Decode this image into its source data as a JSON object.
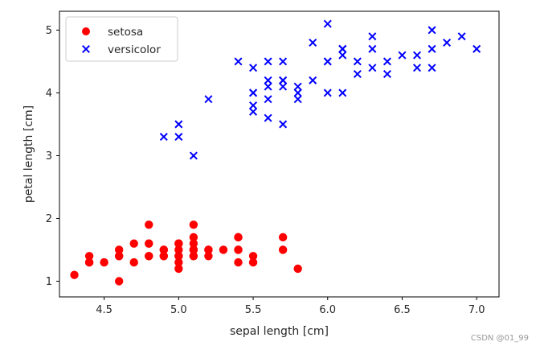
{
  "chart_data": {
    "type": "scatter",
    "xlabel": "sepal length [cm]",
    "ylabel": "petal length [cm]",
    "xlim": [
      4.2,
      7.15
    ],
    "ylim": [
      0.75,
      5.3
    ],
    "xticks": [
      "4.5",
      "5.0",
      "5.5",
      "6.0",
      "6.5",
      "7.0"
    ],
    "yticks": [
      "1",
      "2",
      "3",
      "4",
      "5"
    ],
    "legend_position": "top-left",
    "series": [
      {
        "name": "setosa",
        "marker": "circle",
        "color": "#ff0000",
        "points": [
          [
            5.1,
            1.4
          ],
          [
            4.9,
            1.4
          ],
          [
            4.7,
            1.3
          ],
          [
            4.6,
            1.5
          ],
          [
            5.0,
            1.4
          ],
          [
            5.4,
            1.7
          ],
          [
            4.6,
            1.4
          ],
          [
            5.0,
            1.5
          ],
          [
            4.4,
            1.4
          ],
          [
            4.9,
            1.5
          ],
          [
            5.4,
            1.5
          ],
          [
            4.8,
            1.6
          ],
          [
            4.8,
            1.4
          ],
          [
            4.3,
            1.1
          ],
          [
            5.8,
            1.2
          ],
          [
            5.7,
            1.5
          ],
          [
            5.4,
            1.3
          ],
          [
            5.1,
            1.4
          ],
          [
            5.7,
            1.7
          ],
          [
            5.1,
            1.5
          ],
          [
            5.4,
            1.7
          ],
          [
            5.1,
            1.5
          ],
          [
            4.6,
            1.0
          ],
          [
            5.1,
            1.7
          ],
          [
            4.8,
            1.9
          ],
          [
            5.0,
            1.6
          ],
          [
            5.0,
            1.6
          ],
          [
            5.2,
            1.5
          ],
          [
            5.2,
            1.4
          ],
          [
            4.7,
            1.6
          ],
          [
            4.8,
            1.6
          ],
          [
            5.4,
            1.5
          ],
          [
            5.2,
            1.5
          ],
          [
            5.5,
            1.4
          ],
          [
            4.9,
            1.5
          ],
          [
            5.0,
            1.2
          ],
          [
            5.5,
            1.3
          ],
          [
            4.9,
            1.4
          ],
          [
            4.4,
            1.3
          ],
          [
            5.1,
            1.5
          ],
          [
            5.0,
            1.3
          ],
          [
            4.5,
            1.3
          ],
          [
            4.4,
            1.3
          ],
          [
            5.0,
            1.6
          ],
          [
            5.1,
            1.9
          ],
          [
            4.8,
            1.4
          ],
          [
            5.1,
            1.6
          ],
          [
            4.6,
            1.4
          ],
          [
            5.3,
            1.5
          ],
          [
            5.0,
            1.4
          ]
        ]
      },
      {
        "name": "versicolor",
        "marker": "x",
        "color": "#0000ff",
        "points": [
          [
            7.0,
            4.7
          ],
          [
            6.4,
            4.5
          ],
          [
            6.9,
            4.9
          ],
          [
            5.5,
            4.0
          ],
          [
            6.5,
            4.6
          ],
          [
            5.7,
            4.5
          ],
          [
            6.3,
            4.7
          ],
          [
            4.9,
            3.3
          ],
          [
            6.6,
            4.6
          ],
          [
            5.2,
            3.9
          ],
          [
            5.0,
            3.5
          ],
          [
            5.9,
            4.2
          ],
          [
            6.0,
            4.0
          ],
          [
            6.1,
            4.7
          ],
          [
            5.6,
            3.6
          ],
          [
            6.7,
            4.4
          ],
          [
            5.6,
            4.5
          ],
          [
            5.8,
            4.1
          ],
          [
            6.2,
            4.5
          ],
          [
            5.6,
            3.9
          ],
          [
            5.9,
            4.8
          ],
          [
            6.1,
            4.0
          ],
          [
            6.3,
            4.9
          ],
          [
            6.1,
            4.7
          ],
          [
            6.4,
            4.3
          ],
          [
            6.6,
            4.4
          ],
          [
            6.8,
            4.8
          ],
          [
            6.7,
            5.0
          ],
          [
            6.0,
            4.5
          ],
          [
            5.7,
            3.5
          ],
          [
            5.5,
            3.8
          ],
          [
            5.5,
            3.7
          ],
          [
            5.8,
            3.9
          ],
          [
            6.0,
            5.1
          ],
          [
            5.4,
            4.5
          ],
          [
            6.0,
            4.5
          ],
          [
            6.7,
            4.7
          ],
          [
            6.3,
            4.4
          ],
          [
            5.6,
            4.1
          ],
          [
            5.5,
            4.0
          ],
          [
            5.5,
            4.4
          ],
          [
            6.1,
            4.6
          ],
          [
            5.8,
            4.0
          ],
          [
            5.0,
            3.3
          ],
          [
            5.6,
            4.2
          ],
          [
            5.7,
            4.2
          ],
          [
            5.7,
            4.2
          ],
          [
            6.2,
            4.3
          ],
          [
            5.1,
            3.0
          ],
          [
            5.7,
            4.1
          ]
        ]
      }
    ]
  },
  "watermark": "CSDN @01_99"
}
